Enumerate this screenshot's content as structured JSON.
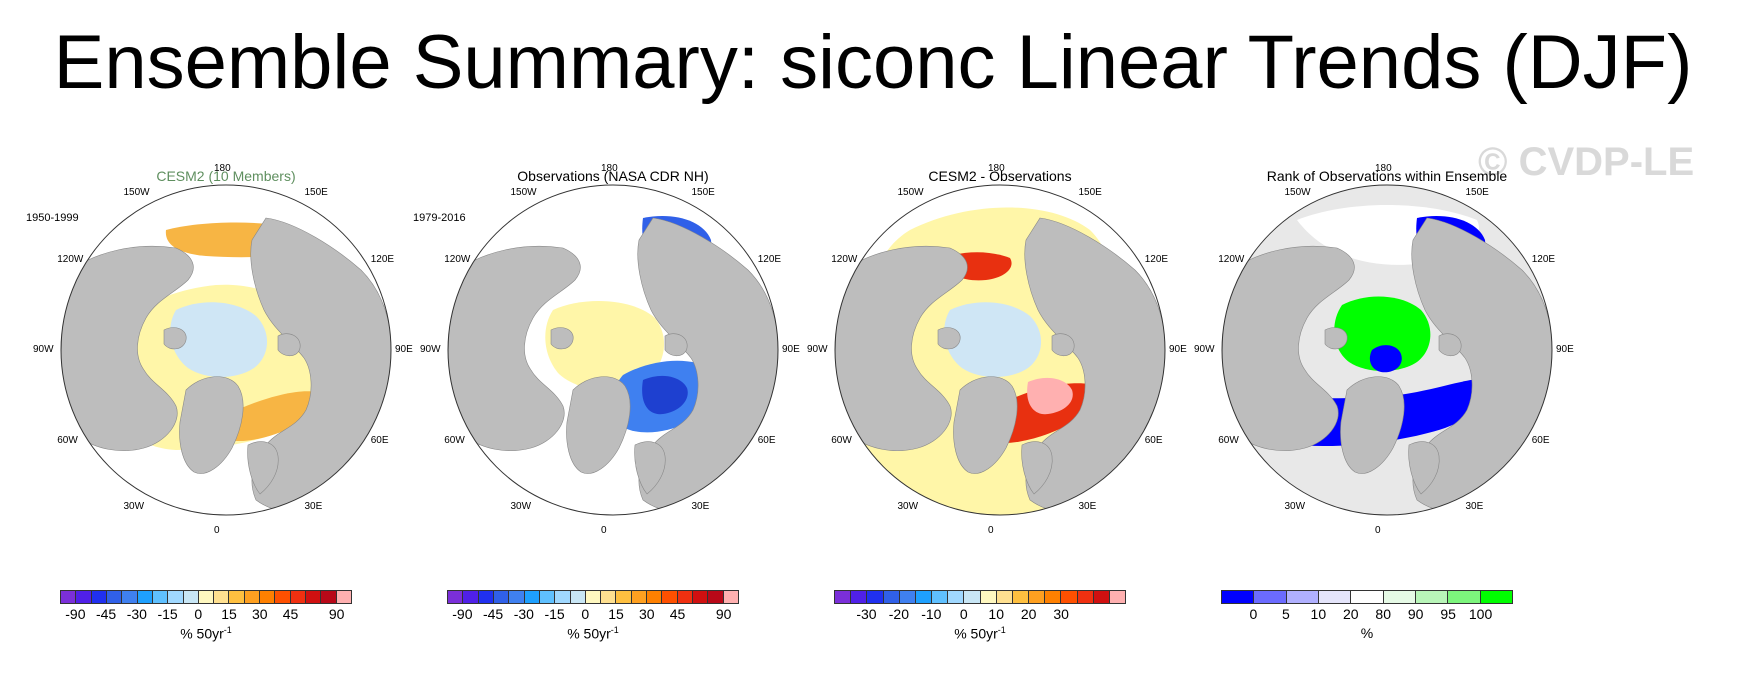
{
  "title": "Ensemble Summary: siconc Linear Trends (DJF)",
  "watermark": "© CVDP-LE",
  "lon_labels": [
    "180",
    "150E",
    "120E",
    "90E",
    "60E",
    "30E",
    "0",
    "30W",
    "60W",
    "90W",
    "120W",
    "150W"
  ],
  "panels": [
    {
      "title": "CESM2 (10 Members)",
      "title_color": "#5f8f5f",
      "period": "1950-1999",
      "colors": [
        "#7b2fd9",
        "#5020e8",
        "#2030f0",
        "#3060e8",
        "#3f80f0",
        "#1ea0ff",
        "#5fc0ff",
        "#a0d8ff",
        "#c8e6f5",
        "#fff8c0",
        "#ffe090",
        "#ffc040",
        "#ffa020",
        "#ff8000",
        "#ff5000",
        "#f03010",
        "#d01010",
        "#b80818",
        "#ffb0b0"
      ],
      "ticks": [
        "-90",
        "-45",
        "-30",
        "-15",
        "0",
        "15",
        "30",
        "45",
        "90"
      ],
      "tick_edges": [
        1,
        3,
        5,
        7,
        9,
        11,
        13,
        15,
        18
      ],
      "unit_base": "% 50yr",
      "unit_sup": "-1",
      "regions": [
        {
          "fill": "#fff6a8",
          "shape": "blob-yellow-wide"
        },
        {
          "fill": "#cfe6f5",
          "shape": "blob-blue-center"
        },
        {
          "fill": "#f7b544",
          "shape": "blob-orange-pacific"
        },
        {
          "fill": "#f7b544",
          "shape": "blob-orange-atlantic"
        },
        {
          "fill": "#cfe6f5",
          "shape": "blob-blue-labrador"
        }
      ]
    },
    {
      "title": "Observations (NASA CDR NH)",
      "title_color": "#000000",
      "period": "1979-2016",
      "colors": [
        "#7b2fd9",
        "#5020e8",
        "#2030f0",
        "#3060e8",
        "#3f80f0",
        "#1ea0ff",
        "#5fc0ff",
        "#a0d8ff",
        "#c8e6f5",
        "#fff8c0",
        "#ffe090",
        "#ffc040",
        "#ffa020",
        "#ff8000",
        "#ff5000",
        "#f03010",
        "#d01010",
        "#b80818",
        "#ffb0b0"
      ],
      "ticks": [
        "-90",
        "-45",
        "-30",
        "-15",
        "0",
        "15",
        "30",
        "45",
        "90"
      ],
      "tick_edges": [
        1,
        3,
        5,
        7,
        9,
        11,
        13,
        15,
        18
      ],
      "unit_base": "% 50yr",
      "unit_sup": "-1",
      "regions": [
        {
          "fill": "#fff6a8",
          "shape": "blob-yellow-center"
        },
        {
          "fill": "#3f80f0",
          "shape": "blob-blue-barents"
        },
        {
          "fill": "#5fc0ff",
          "shape": "blob-blue-labrador"
        },
        {
          "fill": "#3060e8",
          "shape": "blob-blue-okhotsk"
        },
        {
          "fill": "#1e40d0",
          "shape": "blob-darkblue-barents"
        }
      ]
    },
    {
      "title": "CESM2 - Observations",
      "title_color": "#000000",
      "period": "",
      "colors": [
        "#7b2fd9",
        "#5020e8",
        "#2030f0",
        "#3060e8",
        "#3f80f0",
        "#1ea0ff",
        "#5fc0ff",
        "#a0d8ff",
        "#c8e6f5",
        "#fff8c0",
        "#ffe090",
        "#ffc040",
        "#ffa020",
        "#ff8000",
        "#ff5000",
        "#f03010",
        "#d01010",
        "#ffb0b0"
      ],
      "ticks": [
        "-30",
        "-20",
        "-10",
        "0",
        "10",
        "20",
        "30"
      ],
      "tick_edges": [
        2,
        4,
        6,
        8,
        10,
        12,
        14
      ],
      "unit_base": "% 50yr",
      "unit_sup": "-1",
      "regions": [
        {
          "fill": "#fff6a8",
          "shape": "blob-yellow-all"
        },
        {
          "fill": "#cfe6f5",
          "shape": "blob-blue-center"
        },
        {
          "fill": "#e83010",
          "shape": "blob-red-atlantic"
        },
        {
          "fill": "#f89040",
          "shape": "blob-orange-labrador"
        },
        {
          "fill": "#e83010",
          "shape": "blob-red-okhotsk"
        },
        {
          "fill": "#ffb0b0",
          "shape": "blob-pink-barents"
        }
      ]
    },
    {
      "title": "Rank of Observations within Ensemble",
      "title_color": "#000000",
      "period": "",
      "colors": [
        "#0000ff",
        "#6b6bff",
        "#b0b0ff",
        "#e4e4fa",
        "#ffffff",
        "#e6fae6",
        "#b8f5b8",
        "#7cf57c",
        "#00ff00"
      ],
      "ticks": [
        "0",
        "5",
        "10",
        "20",
        "80",
        "90",
        "95",
        "100"
      ],
      "tick_edges": [
        1,
        2,
        3,
        4,
        5,
        6,
        7,
        8
      ],
      "unit_base": "%",
      "unit_sup": "",
      "regions": [
        {
          "fill": "#e8e8e8",
          "shape": "blob-gray-ocean"
        },
        {
          "fill": "#ffffff",
          "shape": "blob-white-pacific"
        },
        {
          "fill": "#00ff00",
          "shape": "blob-green-center"
        },
        {
          "fill": "#0000ff",
          "shape": "blob-blue-atlantic"
        },
        {
          "fill": "#0000ff",
          "shape": "blob-blue-okhotsk"
        },
        {
          "fill": "#0000ff",
          "shape": "blob-blue-ring"
        }
      ]
    }
  ]
}
